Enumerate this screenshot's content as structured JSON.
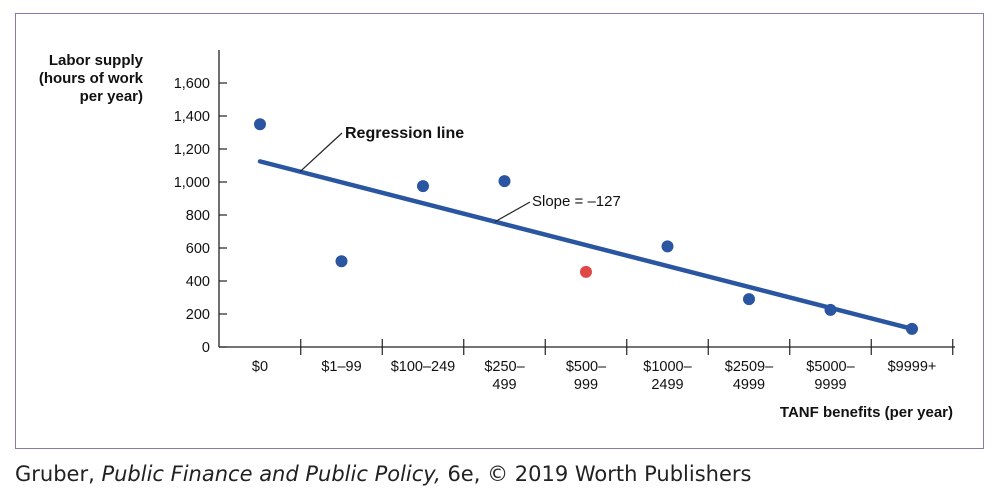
{
  "chart_data": {
    "type": "scatter",
    "ylabel_lines": [
      "Labor supply",
      "(hours of work",
      "per year)"
    ],
    "xlabel": "TANF benefits (per year)",
    "categories": [
      [
        "$0"
      ],
      [
        "$1–99"
      ],
      [
        "$100–249"
      ],
      [
        "$250–",
        "499"
      ],
      [
        "$500–",
        "999"
      ],
      [
        "$1000–",
        "2499"
      ],
      [
        "$2509–",
        "4999"
      ],
      [
        "$5000–",
        "9999"
      ],
      [
        "$9999+"
      ]
    ],
    "y_ticks": [
      0,
      200,
      400,
      600,
      800,
      1000,
      1200,
      1400,
      1600
    ],
    "y_tick_labels": [
      "0",
      "200",
      "400",
      "600",
      "800",
      "1,000",
      "1,200",
      "1,400",
      "1,600"
    ],
    "ylim": [
      0,
      1600
    ],
    "points": [
      {
        "category_index": 0,
        "y": 1350,
        "color": "#2a55a0"
      },
      {
        "category_index": 1,
        "y": 520,
        "color": "#2a55a0"
      },
      {
        "category_index": 2,
        "y": 975,
        "color": "#2a55a0"
      },
      {
        "category_index": 3,
        "y": 1005,
        "color": "#2a55a0"
      },
      {
        "category_index": 4,
        "y": 455,
        "color": "#e04848"
      },
      {
        "category_index": 5,
        "y": 610,
        "color": "#2a55a0"
      },
      {
        "category_index": 6,
        "y": 290,
        "color": "#2a55a0"
      },
      {
        "category_index": 7,
        "y": 225,
        "color": "#2a55a0"
      },
      {
        "category_index": 8,
        "y": 110,
        "color": "#2a55a0"
      }
    ],
    "regression": {
      "label": "Regression line",
      "slope_label": "Slope = –127",
      "start": {
        "category_index": 0,
        "y": 1125
      },
      "end": {
        "category_index": 8,
        "y": 110
      },
      "color": "#2a55a0"
    },
    "grid": false
  },
  "caption": {
    "author": "Gruber, ",
    "title": "Public Finance and Public Policy,",
    "rest": " 6e, © 2019 Worth Publishers"
  }
}
